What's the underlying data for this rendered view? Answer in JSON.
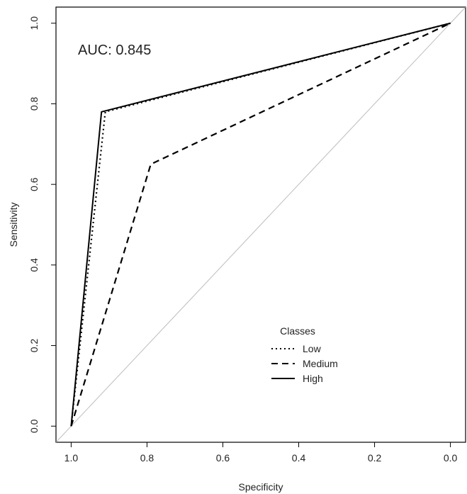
{
  "chart_data": {
    "type": "line",
    "title": "",
    "xlabel": "Specificity",
    "ylabel": "Sensitivity",
    "xlim": [
      1.04,
      -0.04
    ],
    "ylim": [
      -0.04,
      1.04
    ],
    "x_reversed": true,
    "grid": false,
    "x_ticks": [
      "1.0",
      "0.8",
      "0.6",
      "0.4",
      "0.2",
      "0.0"
    ],
    "y_ticks": [
      "0.0",
      "0.2",
      "0.4",
      "0.6",
      "0.8",
      "1.0"
    ],
    "annotations": [
      {
        "text": "AUC: 0.845"
      }
    ],
    "legend": {
      "title": "Classes",
      "placement": "bottom-right"
    },
    "reference_line": {
      "from": [
        1.0,
        0.0
      ],
      "to": [
        0.0,
        1.0
      ],
      "color": "#bdbdbd"
    },
    "series": [
      {
        "name": "Low",
        "line_style": "dotted",
        "color": "#000000",
        "points": [
          {
            "specificity": 1.0,
            "sensitivity": 0.0
          },
          {
            "specificity": 0.91,
            "sensitivity": 0.78
          },
          {
            "specificity": 0.0,
            "sensitivity": 1.0
          }
        ]
      },
      {
        "name": "Medium",
        "line_style": "dashed",
        "color": "#000000",
        "points": [
          {
            "specificity": 1.0,
            "sensitivity": 0.0
          },
          {
            "specificity": 0.79,
            "sensitivity": 0.65
          },
          {
            "specificity": 0.0,
            "sensitivity": 1.0
          }
        ]
      },
      {
        "name": "High",
        "line_style": "solid",
        "color": "#000000",
        "points": [
          {
            "specificity": 1.0,
            "sensitivity": 0.0
          },
          {
            "specificity": 0.92,
            "sensitivity": 0.78
          },
          {
            "specificity": 0.0,
            "sensitivity": 1.0
          }
        ]
      }
    ]
  }
}
